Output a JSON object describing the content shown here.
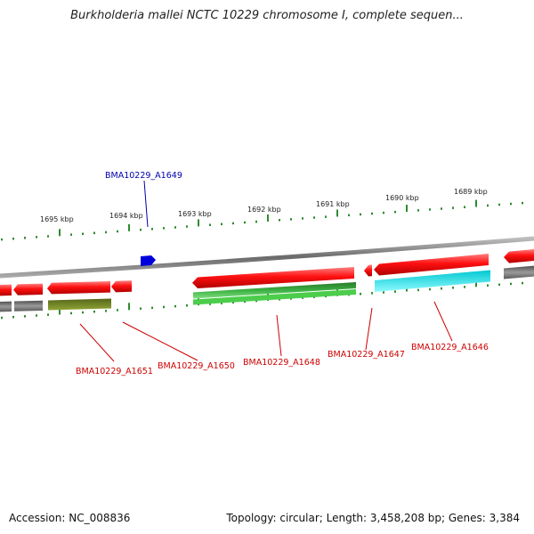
{
  "title": "Burkholderia mallei NCTC 10229 chromosome I, complete sequen...",
  "footer": {
    "accession": "Accession: NC_008836",
    "summary": "Topology: circular; Length: 3,458,208 bp; Genes: 3,384"
  },
  "colors": {
    "backbone": "#8a8a8a",
    "tick": "#2e8b2e",
    "forward_gene": "#e00000",
    "reverse_gene": "#e00000",
    "rna_green": "#3cb043",
    "olive": "#7a8c2a",
    "cyan": "#00e5ee",
    "gray": "#6e6e6e",
    "blue": "#0000dd",
    "label_red": "#cc0000",
    "label_blue": "#0000aa"
  },
  "scale_labels": [
    "1695 kbp",
    "1694 kbp",
    "1693 kbp",
    "1692 kbp",
    "1691 kbp",
    "1690 kbp",
    "1689 kbp"
  ],
  "gene_labels": {
    "upper": [
      "BMA10229_A1649"
    ],
    "lower": [
      "BMA10229_A1651",
      "BMA10229_A1650",
      "BMA10229_A1648",
      "BMA10229_A1647",
      "BMA10229_A1646"
    ]
  }
}
